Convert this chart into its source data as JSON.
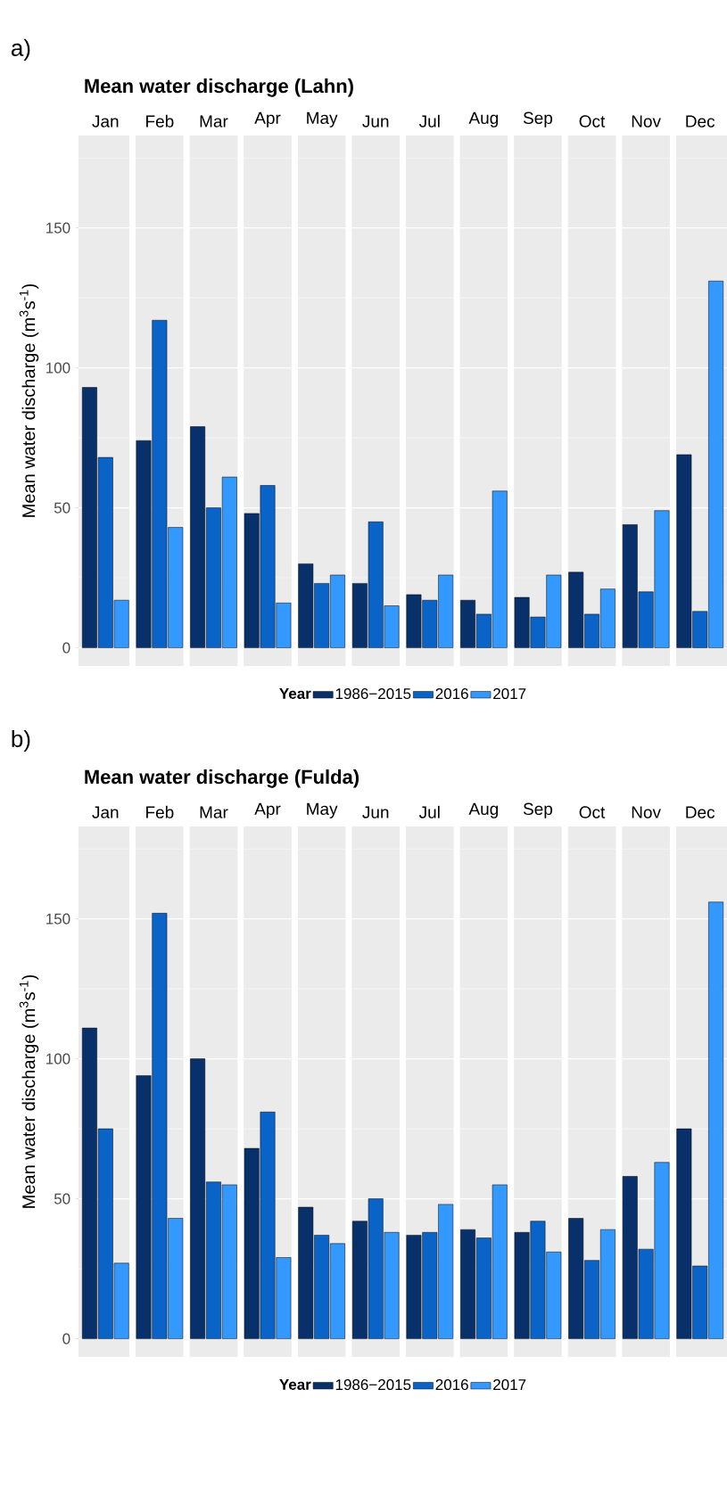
{
  "chart_data": [
    {
      "type": "bar",
      "title": "Mean water discharge (Lahn)",
      "annotations": [
        "a)"
      ],
      "ylabel": "Mean water discharge (m$^{3}$s$^{-1}$)",
      "legend_title": "Year",
      "categories": [
        "Jan",
        "Feb",
        "Mar",
        "Apr",
        "May",
        "Jun",
        "Jul",
        "Aug",
        "Sep",
        "Oct",
        "Nov",
        "Dec"
      ],
      "series": [
        {
          "name": "1986−2015",
          "color": "#08306b",
          "values": [
            93,
            74,
            79,
            48,
            30,
            23,
            19,
            17,
            18,
            27,
            44,
            69
          ]
        },
        {
          "name": "2016",
          "color": "#0a64c8",
          "values": [
            68,
            117,
            50,
            58,
            23,
            45,
            17,
            12,
            11,
            12,
            20,
            13
          ]
        },
        {
          "name": "2017",
          "color": "#3399ff",
          "values": [
            17,
            43,
            61,
            16,
            26,
            15,
            26,
            56,
            26,
            21,
            49,
            131
          ]
        }
      ],
      "ylim": [
        -6.5,
        183
      ],
      "yticks": [
        0,
        50,
        100,
        150
      ],
      "grid": "y",
      "legend": "bottom"
    },
    {
      "type": "bar",
      "title": "Mean water discharge (Fulda)",
      "annotations": [
        "b)"
      ],
      "ylabel": "Mean water discharge (m$^{3}$s$^{-1}$)",
      "legend_title": "Year",
      "categories": [
        "Jan",
        "Feb",
        "Mar",
        "Apr",
        "May",
        "Jun",
        "Jul",
        "Aug",
        "Sep",
        "Oct",
        "Nov",
        "Dec"
      ],
      "series": [
        {
          "name": "1986−2015",
          "color": "#08306b",
          "values": [
            111,
            94,
            100,
            68,
            47,
            42,
            37,
            39,
            38,
            43,
            58,
            75
          ]
        },
        {
          "name": "2016",
          "color": "#0a64c8",
          "values": [
            75,
            152,
            56,
            81,
            37,
            50,
            38,
            36,
            42,
            28,
            32,
            26
          ]
        },
        {
          "name": "2017",
          "color": "#3399ff",
          "values": [
            27,
            43,
            55,
            29,
            34,
            38,
            48,
            55,
            31,
            39,
            63,
            156
          ]
        }
      ],
      "ylim": [
        -6.5,
        183
      ],
      "yticks": [
        0,
        50,
        100,
        150
      ],
      "grid": "y",
      "legend": "bottom"
    }
  ]
}
